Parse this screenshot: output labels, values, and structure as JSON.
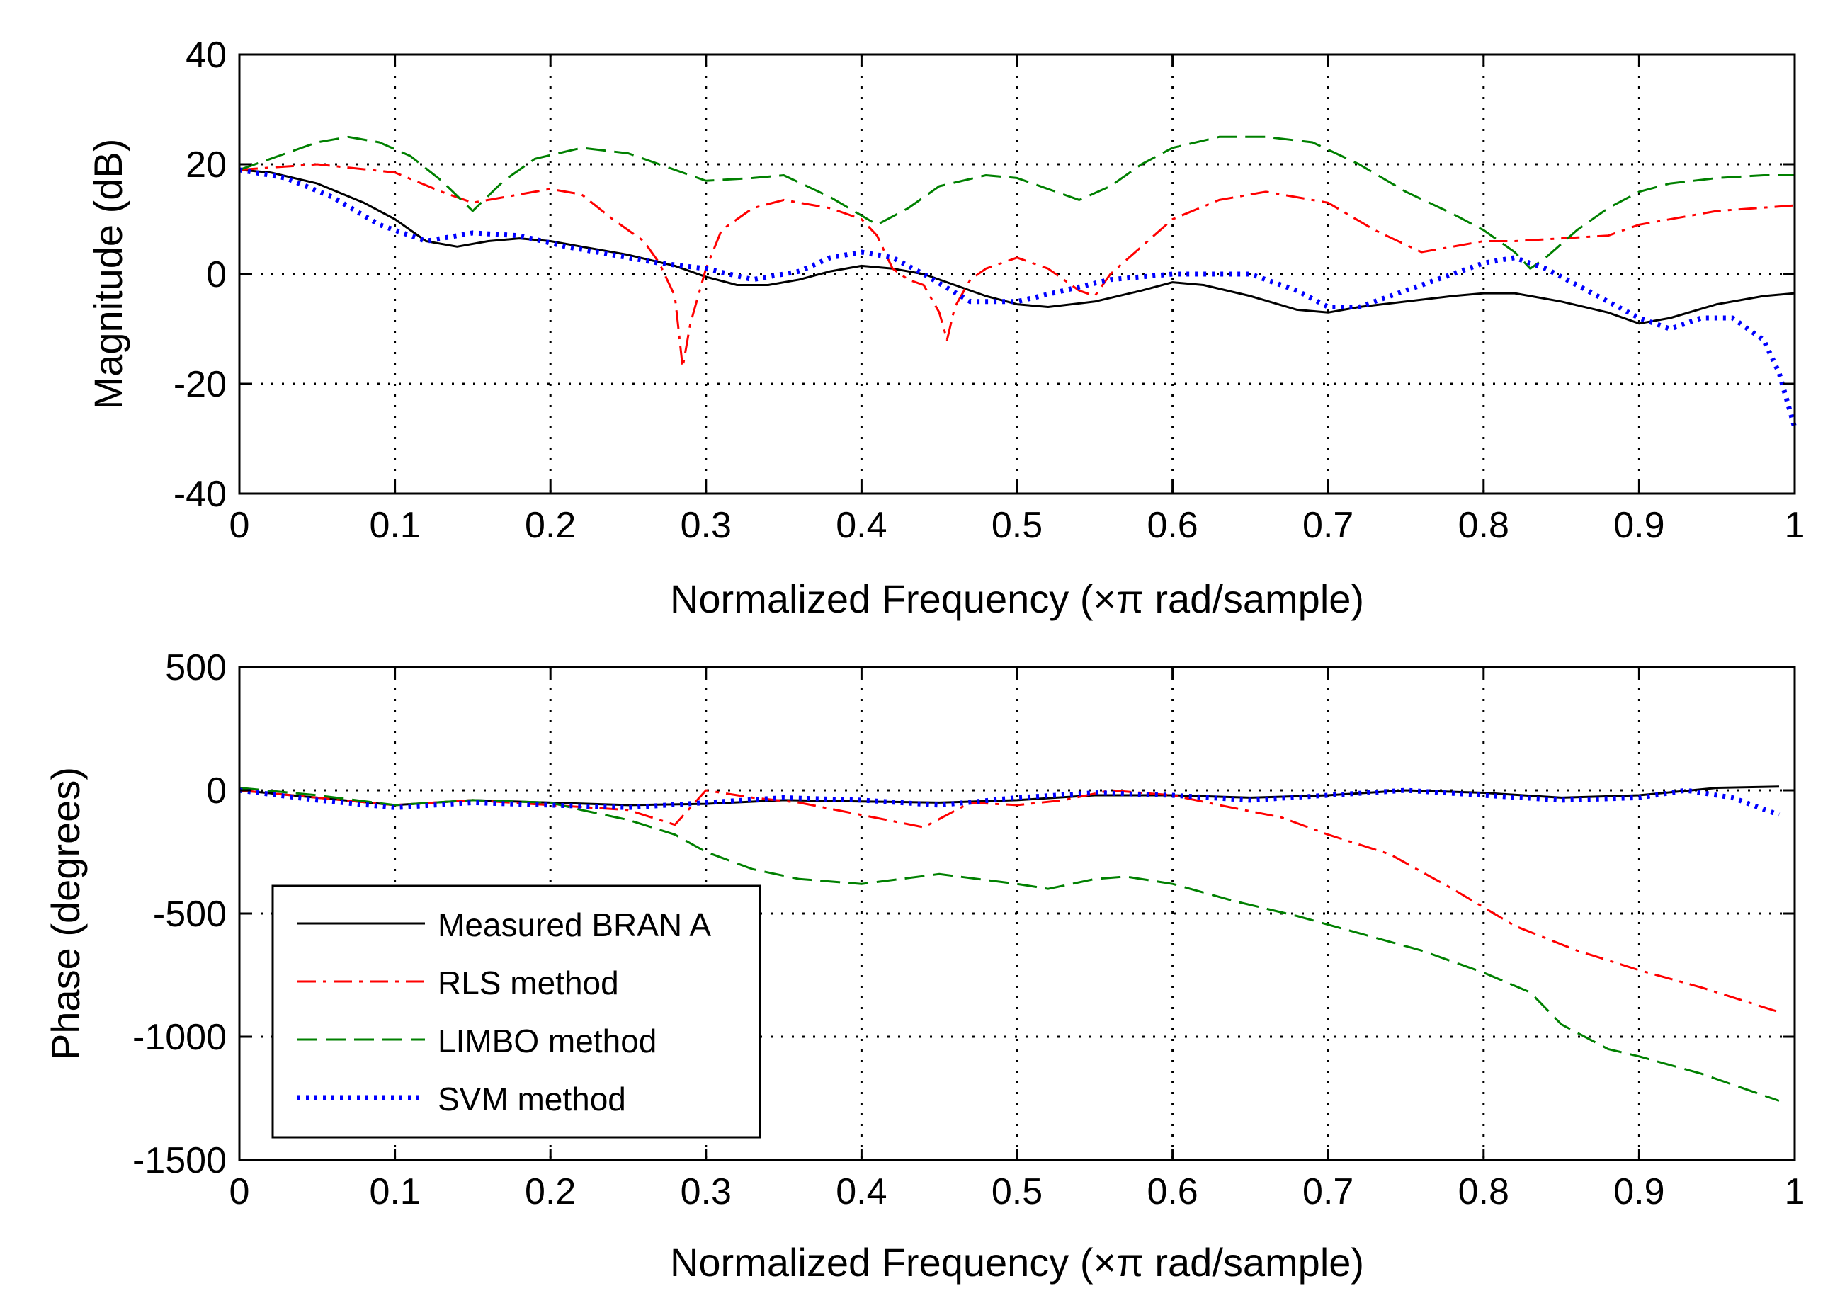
{
  "chart_data": [
    {
      "type": "line",
      "id": "magnitude",
      "title": "",
      "xlabel": "Normalized Frequency  (×π rad/sample)",
      "ylabel": "Magnitude (dB)",
      "xlim": [
        0,
        1
      ],
      "ylim": [
        -40,
        40
      ],
      "xticks": [
        0,
        0.1,
        0.2,
        0.3,
        0.4,
        0.5,
        0.6,
        0.7,
        0.8,
        0.9,
        1
      ],
      "xtick_labels": [
        "0",
        "0.1",
        "0.2",
        "0.3",
        "0.4",
        "0.5",
        "0.6",
        "0.7",
        "0.8",
        "0.9",
        "1"
      ],
      "yticks": [
        -40,
        -20,
        0,
        20,
        40
      ],
      "ytick_labels": [
        "-40",
        "-20",
        "0",
        "20",
        "40"
      ],
      "grid": true,
      "series": [
        {
          "name": "Measured BRAN A",
          "color": "#000000",
          "style": "solid",
          "x": [
            0,
            0.02,
            0.05,
            0.08,
            0.1,
            0.12,
            0.14,
            0.16,
            0.18,
            0.2,
            0.22,
            0.25,
            0.28,
            0.3,
            0.32,
            0.34,
            0.36,
            0.38,
            0.4,
            0.42,
            0.44,
            0.46,
            0.48,
            0.5,
            0.52,
            0.55,
            0.58,
            0.6,
            0.62,
            0.65,
            0.68,
            0.7,
            0.72,
            0.75,
            0.78,
            0.8,
            0.82,
            0.85,
            0.88,
            0.9,
            0.92,
            0.95,
            0.98,
            1.0
          ],
          "y": [
            19,
            18.5,
            16.5,
            13,
            10,
            6,
            5,
            6,
            6.5,
            6,
            5,
            3.5,
            1.5,
            -0.5,
            -2,
            -2,
            -1,
            0.5,
            1.5,
            1,
            0,
            -2,
            -4,
            -5.5,
            -6,
            -5,
            -3,
            -1.5,
            -2,
            -4,
            -6.5,
            -7,
            -6,
            -5,
            -4,
            -3.5,
            -3.5,
            -5,
            -7,
            -9,
            -8,
            -5.5,
            -4,
            -3.5
          ]
        },
        {
          "name": "RLS method",
          "color": "#ff0000",
          "style": "dashdot",
          "x": [
            0,
            0.05,
            0.1,
            0.13,
            0.15,
            0.18,
            0.2,
            0.22,
            0.24,
            0.26,
            0.27,
            0.28,
            0.285,
            0.29,
            0.3,
            0.31,
            0.33,
            0.35,
            0.38,
            0.4,
            0.41,
            0.42,
            0.43,
            0.44,
            0.45,
            0.455,
            0.46,
            0.47,
            0.48,
            0.5,
            0.52,
            0.54,
            0.55,
            0.56,
            0.58,
            0.6,
            0.63,
            0.66,
            0.7,
            0.73,
            0.76,
            0.78,
            0.8,
            0.82,
            0.85,
            0.88,
            0.9,
            0.95,
            1.0
          ],
          "y": [
            19,
            20,
            18.5,
            15,
            13,
            14.5,
            15.5,
            14.5,
            10,
            6,
            2,
            -4,
            -17,
            -9,
            1,
            8,
            12,
            13.5,
            12,
            10,
            7,
            1,
            -1,
            -2,
            -7,
            -12,
            -6,
            -1,
            1,
            3,
            1,
            -3,
            -4,
            0,
            5,
            10,
            13.5,
            15,
            13,
            8,
            4,
            5,
            6,
            6,
            6.5,
            7,
            9,
            11.5,
            12.5
          ]
        },
        {
          "name": "LIMBO method",
          "color": "#008000",
          "style": "dashed",
          "x": [
            0,
            0.03,
            0.05,
            0.07,
            0.09,
            0.11,
            0.13,
            0.15,
            0.17,
            0.19,
            0.22,
            0.25,
            0.28,
            0.3,
            0.33,
            0.35,
            0.38,
            0.41,
            0.43,
            0.45,
            0.48,
            0.5,
            0.52,
            0.54,
            0.56,
            0.58,
            0.6,
            0.63,
            0.66,
            0.69,
            0.72,
            0.75,
            0.78,
            0.8,
            0.82,
            0.83,
            0.84,
            0.86,
            0.88,
            0.9,
            0.92,
            0.95,
            0.98,
            1.0
          ],
          "y": [
            19,
            22,
            24,
            25,
            24,
            21.5,
            17,
            11.5,
            17,
            21,
            23,
            22,
            19,
            17,
            17.5,
            18,
            14,
            9,
            12,
            16,
            18,
            17.5,
            15.5,
            13.5,
            16,
            20,
            23,
            25,
            25,
            24,
            20,
            15,
            11,
            8,
            4,
            1,
            3,
            8,
            12,
            15,
            16.5,
            17.5,
            18,
            18
          ]
        },
        {
          "name": "SVM method",
          "color": "#0000ff",
          "style": "dotted",
          "x": [
            0,
            0.03,
            0.06,
            0.09,
            0.12,
            0.15,
            0.18,
            0.21,
            0.24,
            0.27,
            0.3,
            0.33,
            0.36,
            0.38,
            0.4,
            0.42,
            0.44,
            0.47,
            0.5,
            0.53,
            0.56,
            0.6,
            0.63,
            0.65,
            0.68,
            0.7,
            0.72,
            0.74,
            0.76,
            0.78,
            0.8,
            0.82,
            0.84,
            0.86,
            0.88,
            0.9,
            0.92,
            0.94,
            0.96,
            0.98,
            0.99,
            1.0
          ],
          "y": [
            19,
            17.5,
            14,
            9,
            6,
            7.5,
            7,
            5,
            3.5,
            2,
            1,
            -1,
            0.5,
            3,
            4,
            3,
            0,
            -5,
            -5,
            -3,
            -1,
            0,
            0,
            0,
            -3,
            -6,
            -6,
            -4,
            -2,
            0,
            2,
            3,
            1,
            -2,
            -5,
            -8,
            -10,
            -8,
            -8,
            -12,
            -18,
            -28
          ]
        }
      ]
    },
    {
      "type": "line",
      "id": "phase",
      "title": "",
      "xlabel": "Normalized Frequency  (×π rad/sample)",
      "ylabel": "Phase (degrees)",
      "xlim": [
        0,
        1
      ],
      "ylim": [
        -1500,
        500
      ],
      "xticks": [
        0,
        0.1,
        0.2,
        0.3,
        0.4,
        0.5,
        0.6,
        0.7,
        0.8,
        0.9,
        1
      ],
      "xtick_labels": [
        "0",
        "0.1",
        "0.2",
        "0.3",
        "0.4",
        "0.5",
        "0.6",
        "0.7",
        "0.8",
        "0.9",
        "1"
      ],
      "yticks": [
        -1500,
        -1000,
        -500,
        0,
        500
      ],
      "ytick_labels": [
        "-1500",
        "-1000",
        "-500",
        "0",
        "500"
      ],
      "grid": true,
      "legend": {
        "position": "lower-left",
        "entries": [
          "Measured BRAN A",
          "RLS method",
          "LIMBO method",
          "SVM method"
        ]
      },
      "series": [
        {
          "name": "Measured BRAN A",
          "color": "#000000",
          "style": "solid",
          "x": [
            0,
            0.05,
            0.1,
            0.15,
            0.2,
            0.25,
            0.3,
            0.35,
            0.4,
            0.45,
            0.5,
            0.55,
            0.6,
            0.65,
            0.7,
            0.75,
            0.8,
            0.85,
            0.9,
            0.95,
            0.99
          ],
          "y": [
            0,
            -30,
            -60,
            -40,
            -50,
            -60,
            -55,
            -40,
            -45,
            -50,
            -40,
            -20,
            -20,
            -30,
            -20,
            0,
            -10,
            -30,
            -20,
            10,
            15
          ]
        },
        {
          "name": "RLS method",
          "color": "#ff0000",
          "style": "dashdot",
          "x": [
            0,
            0.05,
            0.1,
            0.15,
            0.2,
            0.25,
            0.28,
            0.3,
            0.33,
            0.36,
            0.4,
            0.44,
            0.47,
            0.5,
            0.53,
            0.56,
            0.6,
            0.63,
            0.67,
            0.7,
            0.74,
            0.78,
            0.82,
            0.86,
            0.9,
            0.94,
            0.99
          ],
          "y": [
            0,
            -30,
            -60,
            -40,
            -60,
            -80,
            -140,
            0,
            -30,
            -50,
            -100,
            -150,
            -50,
            -60,
            -40,
            0,
            -20,
            -60,
            -110,
            -180,
            -260,
            -400,
            -550,
            -650,
            -730,
            -800,
            -900
          ]
        },
        {
          "name": "LIMBO method",
          "color": "#008000",
          "style": "dashed",
          "x": [
            0,
            0.05,
            0.1,
            0.15,
            0.2,
            0.22,
            0.25,
            0.28,
            0.3,
            0.33,
            0.36,
            0.4,
            0.45,
            0.5,
            0.52,
            0.55,
            0.57,
            0.6,
            0.64,
            0.68,
            0.72,
            0.76,
            0.8,
            0.83,
            0.85,
            0.88,
            0.9,
            0.94,
            0.99
          ],
          "y": [
            10,
            -20,
            -60,
            -40,
            -50,
            -80,
            -120,
            -180,
            -250,
            -320,
            -360,
            -380,
            -340,
            -380,
            -400,
            -360,
            -350,
            -380,
            -450,
            -510,
            -580,
            -650,
            -740,
            -820,
            -950,
            -1050,
            -1080,
            -1150,
            -1260
          ]
        },
        {
          "name": "SVM method",
          "color": "#0000ff",
          "style": "dotted",
          "x": [
            0,
            0.05,
            0.1,
            0.15,
            0.2,
            0.25,
            0.3,
            0.35,
            0.4,
            0.45,
            0.5,
            0.55,
            0.6,
            0.65,
            0.7,
            0.75,
            0.8,
            0.85,
            0.9,
            0.93,
            0.96,
            0.99
          ],
          "y": [
            0,
            -40,
            -70,
            -50,
            -60,
            -70,
            -50,
            -30,
            -40,
            -60,
            -30,
            -10,
            -20,
            -40,
            -20,
            0,
            -20,
            -40,
            -30,
            0,
            -30,
            -100
          ]
        }
      ]
    }
  ]
}
